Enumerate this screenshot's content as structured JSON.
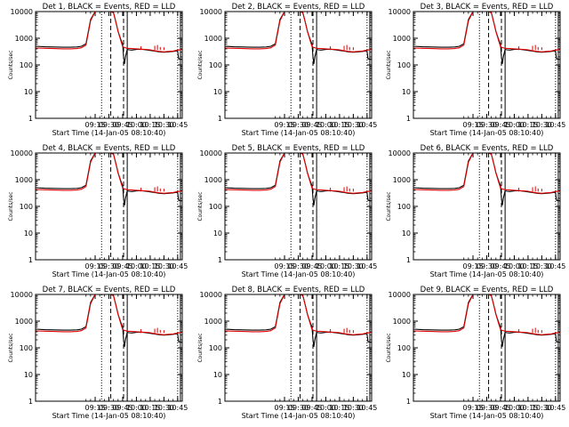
{
  "page": {
    "start_time_label": "Start Time (14-Jan-05 08:10:40)",
    "y_axis_label": "Counts/sec"
  },
  "colors": {
    "events": "#000000",
    "lld": "#e00000",
    "frame": "#000000",
    "background": "#ffffff"
  },
  "chart_data": {
    "type": "line",
    "yscale": "log",
    "ylim": [
      1,
      10000
    ],
    "xlim": [
      "08:10",
      "10:50"
    ],
    "x_tick_labels": [
      "09:15",
      "09:30",
      "09:45",
      "10:00",
      "10:15",
      "10:30",
      "10:45"
    ],
    "y_tick_labels": [
      "1",
      "10",
      "100",
      "1000",
      "10000"
    ],
    "vertical_markers": [
      {
        "time": "09:22",
        "style": "dotted"
      },
      {
        "time": "09:32",
        "style": "dashed"
      },
      {
        "time": "09:46",
        "style": "dashed"
      },
      {
        "time": "09:50",
        "style": "solid"
      },
      {
        "time": "10:45",
        "style": "dotted"
      },
      {
        "time": "10:48",
        "style": "solid"
      }
    ],
    "series_legend": [
      "BLACK = Events",
      "RED = LLD"
    ],
    "panels": [
      {
        "title": "Det 1, BLACK = Events, RED = LLD"
      },
      {
        "title": "Det 2, BLACK = Events, RED = LLD"
      },
      {
        "title": "Det 3, BLACK = Events, RED = LLD"
      },
      {
        "title": "Det 4, BLACK = Events, RED = LLD"
      },
      {
        "title": "Det 5, BLACK = Events, RED = LLD"
      },
      {
        "title": "Det 6, BLACK = Events, RED = LLD"
      },
      {
        "title": "Det 7, BLACK = Events, RED = LLD"
      },
      {
        "title": "Det 8, BLACK = Events, RED = LLD"
      },
      {
        "title": "Det 9, BLACK = Events, RED = LLD"
      }
    ],
    "events_series": {
      "name": "Events",
      "x": [
        "08:10",
        "08:20",
        "08:30",
        "08:40",
        "08:48",
        "08:55",
        "09:00",
        "09:05",
        "09:10",
        "09:15",
        "09:20",
        "09:22",
        "09:25",
        "09:28",
        "09:30",
        "09:32",
        "09:35",
        "09:38",
        "09:40",
        "09:43",
        "09:45",
        "09:46",
        "09:47",
        "09:48",
        "09:50",
        "09:52",
        "09:55",
        "10:00",
        "10:05",
        "10:10",
        "10:15",
        "10:20",
        "10:25",
        "10:30",
        "10:35",
        "10:40",
        "10:45",
        "10:46",
        "10:50"
      ],
      "values": [
        500,
        480,
        470,
        460,
        460,
        470,
        500,
        620,
        5000,
        10000,
        10000,
        10000,
        10000,
        10000,
        10000,
        10000,
        9000,
        3500,
        1800,
        900,
        600,
        200,
        110,
        200,
        380,
        370,
        360,
        380,
        390,
        370,
        350,
        330,
        310,
        300,
        310,
        320,
        340,
        170,
        160
      ]
    },
    "lld_series": {
      "name": "LLD",
      "x": [
        "08:10",
        "08:20",
        "08:30",
        "08:40",
        "08:48",
        "08:55",
        "09:00",
        "09:05",
        "09:10",
        "09:15",
        "09:20",
        "09:25",
        "09:30",
        "09:32",
        "09:35",
        "09:38",
        "09:40",
        "09:43",
        "09:45",
        "09:47",
        "09:50",
        "09:55",
        "10:00",
        "10:05",
        "10:10",
        "10:15",
        "10:20",
        "10:25",
        "10:30",
        "10:35",
        "10:40",
        "10:45",
        "10:50"
      ],
      "values": [
        430,
        420,
        410,
        400,
        400,
        410,
        440,
        560,
        4500,
        10000,
        10000,
        10000,
        10000,
        10000,
        9000,
        3500,
        1800,
        800,
        480,
        450,
        420,
        410,
        400,
        390,
        380,
        370,
        340,
        320,
        310,
        320,
        330,
        360,
        380
      ]
    },
    "lld_spikes": [
      {
        "time": "10:05",
        "value": 500
      },
      {
        "time": "10:20",
        "value": 520
      },
      {
        "time": "10:23",
        "value": 560
      },
      {
        "time": "10:26",
        "value": 470
      },
      {
        "time": "10:30",
        "value": 460
      }
    ]
  }
}
